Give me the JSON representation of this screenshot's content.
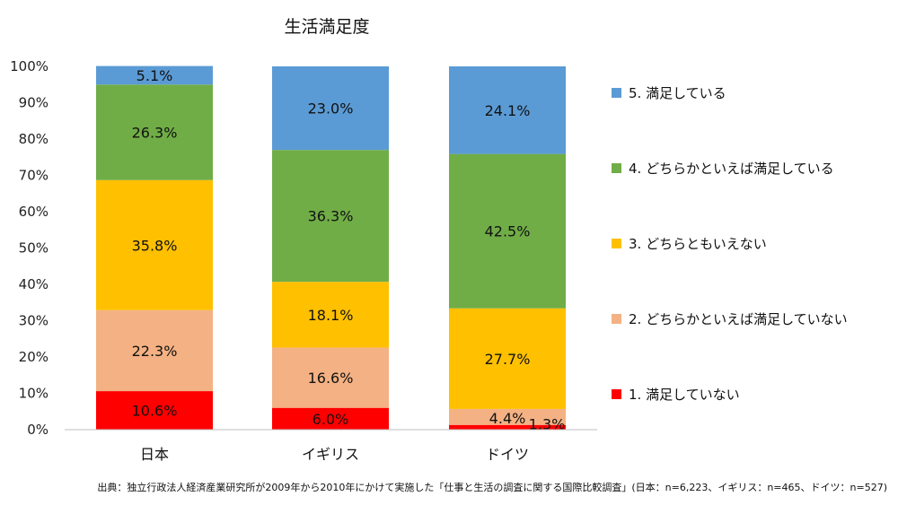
{
  "chart_data": {
    "type": "bar",
    "stacked": true,
    "title": "生活満足度",
    "categories": [
      "日本",
      "イギリス",
      "ドイツ"
    ],
    "ylim": [
      0,
      100
    ],
    "yticks": [
      "0%",
      "10%",
      "20%",
      "30%",
      "40%",
      "50%",
      "60%",
      "70%",
      "80%",
      "90%",
      "100%"
    ],
    "grid": false,
    "legend_position": "right",
    "series": [
      {
        "name": "1. 満足していない",
        "color": "#ff0000",
        "values": [
          10.6,
          6.0,
          1.3
        ],
        "labels": [
          "10.6%",
          "6.0%",
          "1.3%"
        ]
      },
      {
        "name": "2. どちらかといえば満足していない",
        "color": "#f4b183",
        "values": [
          22.3,
          16.6,
          4.4
        ],
        "labels": [
          "22.3%",
          "16.6%",
          "4.4%"
        ]
      },
      {
        "name": "3. どちらともいえない",
        "color": "#ffc000",
        "values": [
          35.8,
          18.1,
          27.7
        ],
        "labels": [
          "35.8%",
          "18.1%",
          "27.7%"
        ]
      },
      {
        "name": "4. どちらかといえば満足している",
        "color": "#70ad47",
        "values": [
          26.3,
          36.3,
          42.5
        ],
        "labels": [
          "26.3%",
          "36.3%",
          "42.5%"
        ]
      },
      {
        "name": "5. 満足している",
        "color": "#5b9bd5",
        "values": [
          5.1,
          23.0,
          24.1
        ],
        "labels": [
          "5.1%",
          "23.0%",
          "24.1%"
        ]
      }
    ],
    "legend_order": [
      4,
      3,
      2,
      1,
      0
    ]
  },
  "source": "出典：独立行政法人経済産業研究所が2009年から2010年にかけて実施した「仕事と生活の調査に関する国際比較調査」(日本：n=6,223、イギリス：n=465、ドイツ：n=527)"
}
